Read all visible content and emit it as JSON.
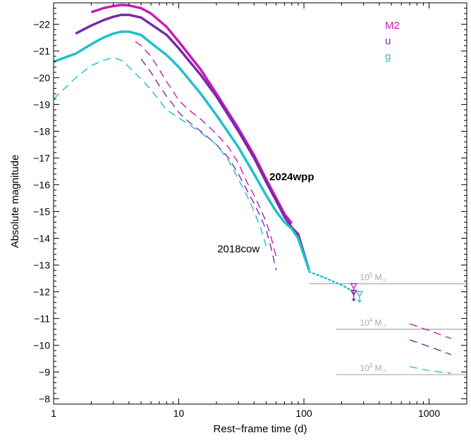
{
  "chart_data": {
    "type": "line",
    "xlabel": "Rest−frame time (d)",
    "ylabel": "Absolute magnitude",
    "x_scale": "log",
    "xlim": [
      1,
      2000
    ],
    "ylim": [
      -7.8,
      -22.8
    ],
    "y_inverted": true,
    "x_ticks": [
      {
        "value": 1,
        "label": "1"
      },
      {
        "value": 10,
        "label": "10"
      },
      {
        "value": 100,
        "label": "100"
      },
      {
        "value": 1000,
        "label": "1000"
      }
    ],
    "y_ticks": [
      {
        "value": -8,
        "label": "−8"
      },
      {
        "value": -9,
        "label": "−9"
      },
      {
        "value": -10,
        "label": "−10"
      },
      {
        "value": -11,
        "label": "−11"
      },
      {
        "value": -12,
        "label": "−12"
      },
      {
        "value": -13,
        "label": "−13"
      },
      {
        "value": -14,
        "label": "−14"
      },
      {
        "value": -15,
        "label": "−15"
      },
      {
        "value": -16,
        "label": "−16"
      },
      {
        "value": -17,
        "label": "−17"
      },
      {
        "value": -18,
        "label": "−18"
      },
      {
        "value": -19,
        "label": "−19"
      },
      {
        "value": -20,
        "label": "−20"
      },
      {
        "value": -21,
        "label": "−21"
      },
      {
        "value": -22,
        "label": "−22"
      }
    ],
    "legend": {
      "placement": "top-right",
      "entries": [
        {
          "label": "M2",
          "color": "#c81ab4"
        },
        {
          "label": "u",
          "color": "#7a2aa8"
        },
        {
          "label": "g",
          "color": "#20c0c8"
        }
      ]
    },
    "annotations": {
      "wpp": {
        "text": "2024wpp",
        "x": 80,
        "y": -16.3
      },
      "cow": {
        "text": "2018cow",
        "x": 30,
        "y": -13.6
      },
      "mass_lines": [
        {
          "base": "10",
          "exp": "5",
          "unit": "M",
          "sub": "☉",
          "y": -12.3
        },
        {
          "base": "10",
          "exp": "4",
          "unit": "M",
          "sub": "☉",
          "y": -10.6
        },
        {
          "base": "10",
          "exp": "3",
          "unit": "M",
          "sub": "☉",
          "y": -8.9
        }
      ]
    },
    "series": [
      {
        "id": "wpp_M2",
        "color": "#c81ab4",
        "style": "solid",
        "width": 3.5,
        "x": [
          2,
          2.5,
          3,
          3.5,
          4,
          5,
          6,
          8,
          10,
          15,
          20,
          30,
          40,
          50,
          60,
          70,
          80
        ],
        "y": [
          -22.45,
          -22.6,
          -22.68,
          -22.72,
          -22.7,
          -22.6,
          -22.4,
          -21.9,
          -21.35,
          -20.3,
          -19.4,
          -18.1,
          -17.1,
          -16.2,
          -15.5,
          -14.9,
          -14.55
        ]
      },
      {
        "id": "wpp_u",
        "color": "#7a2aa8",
        "style": "solid",
        "width": 3.5,
        "x": [
          1.5,
          2,
          2.5,
          3,
          3.5,
          4,
          5,
          6,
          8,
          10,
          15,
          20,
          30,
          40,
          50,
          60,
          70,
          80,
          90,
          110
        ],
        "y": [
          -21.65,
          -21.95,
          -22.15,
          -22.28,
          -22.35,
          -22.35,
          -22.25,
          -22.0,
          -21.6,
          -21.1,
          -20.1,
          -19.3,
          -18.0,
          -17.0,
          -16.1,
          -15.4,
          -14.8,
          -14.4,
          -14.15,
          -12.8
        ]
      },
      {
        "id": "wpp_g",
        "color": "#20c0c8",
        "style": "solid",
        "width": 3.5,
        "x": [
          1,
          1.5,
          2,
          2.5,
          3,
          3.5,
          4,
          5,
          6,
          8,
          10,
          15,
          20,
          30,
          40,
          50,
          60,
          70,
          80,
          90,
          110
        ],
        "y": [
          -20.6,
          -20.9,
          -21.25,
          -21.5,
          -21.65,
          -21.72,
          -21.72,
          -21.6,
          -21.3,
          -20.85,
          -20.4,
          -19.4,
          -18.6,
          -17.4,
          -16.4,
          -15.6,
          -15.0,
          -14.6,
          -14.35,
          -14.0,
          -12.8
        ]
      },
      {
        "id": "wpp_g_late",
        "color": "#20c0c8",
        "style": "dotted",
        "width": 2.5,
        "x": [
          110,
          150,
          200,
          250
        ],
        "y": [
          -12.75,
          -12.5,
          -12.25,
          -12.0
        ]
      },
      {
        "id": "cow_M2",
        "color": "#c81ab4",
        "style": "dashed",
        "width": 1.4,
        "x": [
          4.5,
          5,
          6,
          7,
          8,
          9,
          10,
          12,
          15,
          20,
          25,
          30,
          35,
          40,
          45,
          50,
          55,
          60
        ],
        "y": [
          -21.35,
          -21.2,
          -20.8,
          -20.3,
          -19.85,
          -19.5,
          -19.15,
          -18.8,
          -18.45,
          -17.9,
          -17.4,
          -16.8,
          -16.1,
          -15.6,
          -15.1,
          -14.6,
          -14.0,
          -13.3
        ]
      },
      {
        "id": "cow_u",
        "color": "#7a2aa8",
        "style": "dashed",
        "width": 1.4,
        "x": [
          5,
          6,
          7,
          8,
          9,
          10,
          12,
          15,
          20,
          25,
          30,
          35,
          40,
          45,
          50,
          55,
          60
        ],
        "y": [
          -20.7,
          -20.2,
          -19.7,
          -19.3,
          -19.0,
          -18.7,
          -18.35,
          -18.0,
          -17.5,
          -17.0,
          -16.4,
          -15.8,
          -15.3,
          -14.8,
          -14.3,
          -13.6,
          -12.8
        ]
      },
      {
        "id": "cow_g",
        "color": "#20c0c8",
        "style": "dashed",
        "width": 1.4,
        "x": [
          1,
          1.5,
          2,
          2.5,
          3,
          3.5,
          4,
          5,
          6,
          7,
          8,
          10,
          12,
          15,
          20,
          25,
          30,
          35,
          40,
          45,
          50
        ],
        "y": [
          -19.2,
          -20.0,
          -20.45,
          -20.65,
          -20.75,
          -20.65,
          -20.4,
          -19.95,
          -19.55,
          -19.15,
          -18.8,
          -18.5,
          -18.25,
          -17.95,
          -17.5,
          -16.9,
          -16.2,
          -15.6,
          -15.0,
          -14.4,
          -13.7
        ]
      },
      {
        "id": "late_M2",
        "color": "#c81ab4",
        "style": "dashed",
        "width": 1.4,
        "x": [
          700,
          1000,
          1500
        ],
        "y": [
          -10.8,
          -10.55,
          -10.25
        ]
      },
      {
        "id": "late_u",
        "color": "#7a2aa8",
        "style": "dashed",
        "width": 1.4,
        "x": [
          700,
          1000,
          1500
        ],
        "y": [
          -10.2,
          -9.95,
          -9.65
        ]
      },
      {
        "id": "late_g",
        "color": "#20c0c8",
        "style": "dashed",
        "width": 1.4,
        "x": [
          700,
          1000,
          1500
        ],
        "y": [
          -9.2,
          -9.05,
          -8.95
        ]
      }
    ],
    "upper_limits": [
      {
        "x": 250,
        "y": -12.2,
        "color": "#c81ab4"
      },
      {
        "x": 250,
        "y": -11.95,
        "color": "#7a2aa8"
      },
      {
        "x": 278,
        "y": -11.9,
        "color": "#20c0c8"
      }
    ]
  }
}
